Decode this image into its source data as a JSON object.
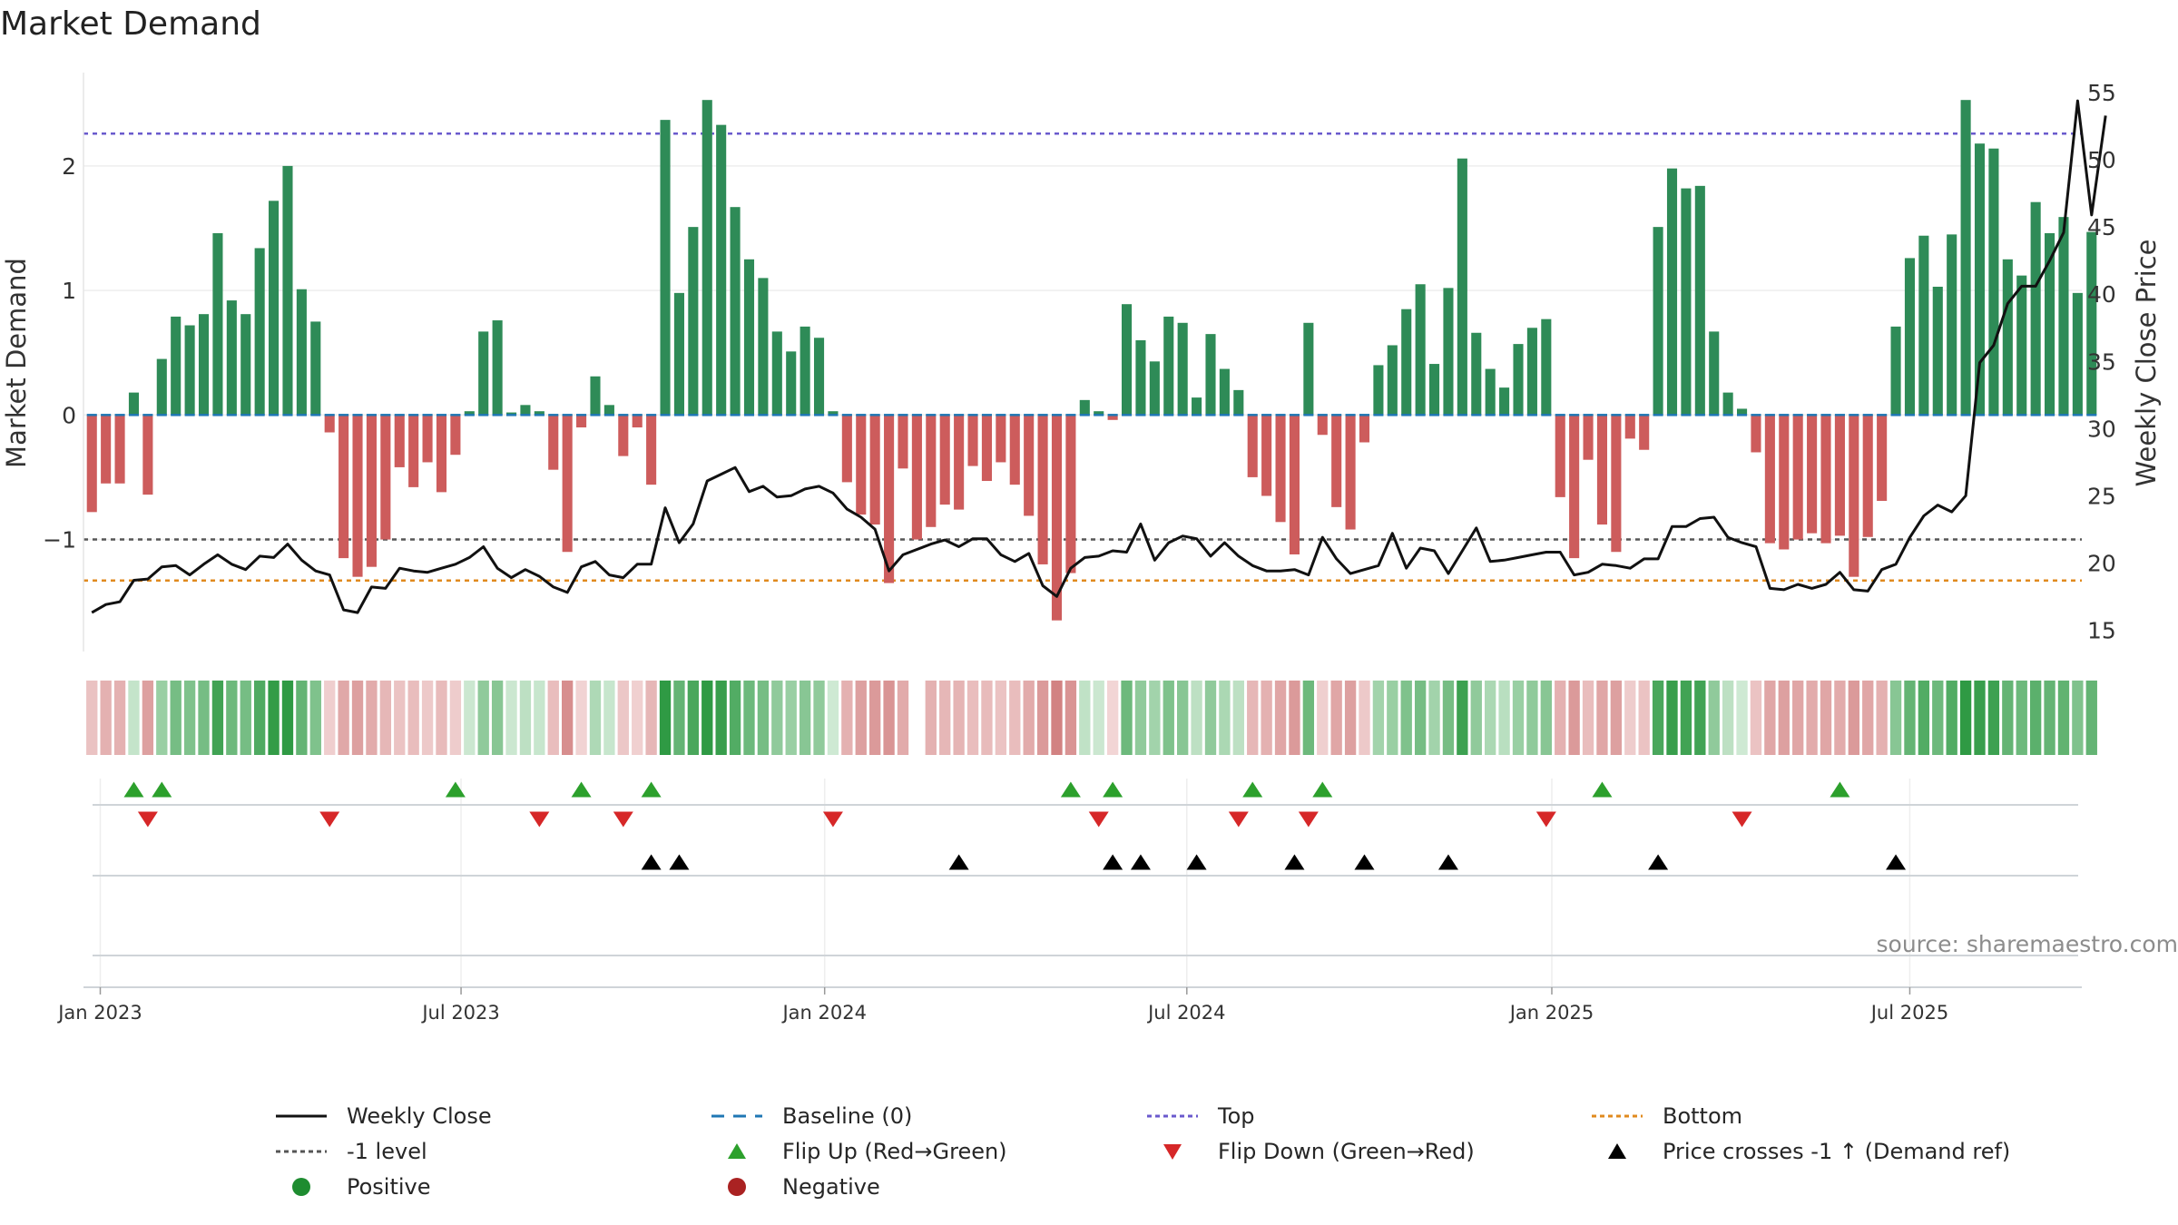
{
  "chart_data": {
    "type": "bar",
    "title": "Market Demand",
    "ylabel_left": "Market Demand",
    "ylabel_right": "Weekly Close Price",
    "source": "source: sharemaestro.com",
    "left_axis": {
      "ylim": [
        -1.9,
        2.75
      ],
      "ticks": [
        -1,
        0,
        1,
        2
      ],
      "tick_labels": [
        "−1",
        "0",
        "1",
        "2"
      ]
    },
    "right_axis": {
      "ylim": [
        13.4,
        56.5
      ],
      "ticks": [
        15,
        20,
        25,
        30,
        35,
        40,
        45,
        50,
        55
      ],
      "tick_labels": [
        "15",
        "20",
        "25",
        "30",
        "35",
        "40",
        "45",
        "50",
        "55"
      ]
    },
    "x_range_weeks": [
      -0.6,
      142.3
    ],
    "x_ticks": [
      {
        "week": 0.6,
        "label": "Jan 2023"
      },
      {
        "week": 26.4,
        "label": "Jul 2023"
      },
      {
        "week": 52.4,
        "label": "Jan 2024"
      },
      {
        "week": 78.3,
        "label": "Jul 2024"
      },
      {
        "week": 104.4,
        "label": "Jan 2025"
      },
      {
        "week": 130.0,
        "label": "Jul 2025"
      }
    ],
    "reference_lines": {
      "top": 2.26,
      "minus_one": -1.0,
      "bottom": -1.33,
      "baseline": 0
    },
    "market_demand": [
      -0.78,
      -0.55,
      -0.55,
      0.18,
      -0.64,
      0.45,
      0.79,
      0.72,
      0.81,
      1.46,
      0.92,
      0.81,
      1.34,
      1.72,
      2.0,
      1.01,
      0.75,
      -0.14,
      -1.15,
      -1.3,
      -1.22,
      -1.0,
      -0.42,
      -0.58,
      -0.38,
      -0.62,
      -0.32,
      0.03,
      0.67,
      0.76,
      0.02,
      0.08,
      0.03,
      -0.44,
      -1.1,
      -0.1,
      0.31,
      0.08,
      -0.33,
      -0.1,
      -0.56,
      2.37,
      0.98,
      1.51,
      2.53,
      2.33,
      1.67,
      1.25,
      1.1,
      0.67,
      0.51,
      0.71,
      0.62,
      0.03,
      -0.54,
      -0.8,
      -0.88,
      -1.35,
      -0.43,
      -1.0,
      -0.9,
      -0.72,
      -0.76,
      -0.41,
      -0.53,
      -0.38,
      -0.56,
      -0.81,
      -1.2,
      -1.65,
      -1.27,
      0.12,
      0.03,
      -0.04,
      0.89,
      0.6,
      0.43,
      0.79,
      0.74,
      0.14,
      0.65,
      0.37,
      0.2,
      -0.5,
      -0.65,
      -0.86,
      -1.12,
      0.74,
      -0.16,
      -0.74,
      -0.92,
      -0.22,
      0.4,
      0.56,
      0.85,
      1.05,
      0.41,
      1.02,
      2.06,
      0.66,
      0.37,
      0.22,
      0.57,
      0.7,
      0.77,
      -0.66,
      -1.15,
      -0.36,
      -0.88,
      -1.1,
      -0.19,
      -0.28,
      1.51,
      1.98,
      1.82,
      1.84,
      0.67,
      0.18,
      0.05,
      -0.3,
      -1.03,
      -1.08,
      -1.0,
      -0.95,
      -1.03,
      -0.97,
      -1.3,
      -0.98,
      -0.69,
      0.71,
      1.26,
      1.44,
      1.03,
      1.45,
      2.53,
      2.18,
      2.14,
      1.25,
      1.12,
      1.71,
      1.46,
      1.59,
      0.98,
      1.47
    ],
    "weekly_close": [
      16.3,
      16.9,
      17.1,
      18.7,
      18.8,
      19.7,
      19.8,
      19.1,
      19.9,
      20.6,
      19.9,
      19.5,
      20.5,
      20.4,
      21.4,
      20.2,
      19.4,
      19.1,
      16.5,
      16.3,
      18.2,
      18.1,
      19.6,
      19.4,
      19.3,
      19.6,
      19.9,
      20.4,
      21.2,
      19.6,
      18.9,
      19.5,
      19.0,
      18.2,
      17.8,
      19.7,
      20.1,
      19.1,
      18.9,
      19.9,
      19.9,
      24.1,
      21.5,
      22.9,
      26.1,
      26.6,
      27.1,
      25.3,
      25.7,
      24.9,
      25.0,
      25.5,
      25.7,
      25.2,
      24.0,
      23.4,
      22.5,
      19.4,
      20.6,
      21.0,
      21.4,
      21.7,
      21.2,
      21.8,
      21.8,
      20.6,
      20.1,
      20.7,
      18.3,
      17.5,
      19.6,
      20.4,
      20.5,
      20.9,
      20.8,
      22.9,
      20.2,
      21.5,
      22.0,
      21.8,
      20.5,
      21.5,
      20.5,
      19.8,
      19.4,
      19.4,
      19.5,
      19.1,
      21.9,
      20.3,
      19.2,
      19.5,
      19.8,
      22.2,
      19.6,
      21.1,
      20.9,
      19.2,
      20.9,
      22.6,
      20.1,
      20.2,
      20.4,
      20.6,
      20.8,
      20.8,
      19.1,
      19.3,
      19.9,
      19.8,
      19.6,
      20.3,
      20.3,
      22.7,
      22.7,
      23.3,
      23.4,
      21.9,
      21.5,
      21.2,
      18.1,
      18.0,
      18.4,
      18.1,
      18.4,
      19.3,
      18.0,
      17.9,
      19.5,
      19.9,
      21.9,
      23.5,
      24.3,
      23.8,
      25.0,
      34.9,
      36.2,
      39.3,
      40.6,
      40.6,
      42.5,
      44.6,
      54.4,
      45.9,
      53.3
    ],
    "strip_values": [
      -0.26,
      -0.4,
      -0.4,
      0.16,
      -0.55,
      0.4,
      0.6,
      0.55,
      0.6,
      0.9,
      0.65,
      0.6,
      0.82,
      0.98,
      1.0,
      0.7,
      0.55,
      -0.16,
      -0.48,
      -0.55,
      -0.45,
      -0.35,
      -0.25,
      -0.3,
      -0.2,
      -0.32,
      -0.18,
      0.12,
      0.45,
      0.5,
      0.12,
      0.2,
      0.14,
      -0.3,
      -0.7,
      -0.12,
      0.28,
      0.14,
      -0.22,
      -0.14,
      -0.35,
      1.0,
      0.7,
      0.85,
      1.0,
      0.95,
      0.8,
      0.65,
      0.6,
      0.45,
      0.4,
      0.5,
      0.45,
      0.1,
      -0.4,
      -0.55,
      -0.6,
      -0.65,
      -0.45,
      null,
      -0.4,
      -0.35,
      -0.38,
      -0.3,
      -0.32,
      -0.25,
      -0.3,
      -0.45,
      -0.6,
      -0.8,
      -0.65,
      0.18,
      0.12,
      -0.1,
      0.65,
      0.45,
      0.35,
      0.55,
      0.5,
      0.2,
      0.45,
      0.3,
      0.2,
      -0.35,
      -0.4,
      -0.5,
      -0.6,
      0.65,
      -0.15,
      -0.5,
      -0.55,
      -0.2,
      0.35,
      0.4,
      0.55,
      0.6,
      0.35,
      0.6,
      0.92,
      0.45,
      0.3,
      0.22,
      0.4,
      0.45,
      0.5,
      -0.4,
      -0.6,
      -0.3,
      -0.5,
      -0.55,
      -0.18,
      -0.25,
      0.85,
      0.95,
      0.9,
      0.9,
      0.45,
      0.2,
      0.1,
      -0.25,
      -0.5,
      -0.55,
      -0.5,
      -0.45,
      -0.5,
      -0.45,
      -0.6,
      -0.5,
      -0.4,
      0.5,
      0.7,
      0.8,
      0.65,
      0.8,
      1.0,
      0.95,
      0.92,
      0.7,
      0.65,
      0.75,
      0.7,
      0.72,
      0.55,
      0.7
    ],
    "flip_up_weeks": [
      3,
      5,
      26,
      35,
      40,
      70,
      73,
      83,
      88,
      108,
      125
    ],
    "flip_down_weeks": [
      4,
      17,
      32,
      38,
      53,
      72,
      82,
      87,
      104,
      118
    ],
    "price_cross_weeks": [
      40,
      42,
      62,
      73,
      75,
      79,
      86,
      91,
      97,
      112,
      129
    ],
    "legend": [
      {
        "label": "Weekly Close",
        "symbol": "solid-line",
        "color": "#111111"
      },
      {
        "label": "Baseline (0)",
        "symbol": "dashed-line",
        "color": "#1f77b4"
      },
      {
        "label": "Top",
        "symbol": "dotted-line",
        "color": "#6a5acd"
      },
      {
        "label": "Bottom",
        "symbol": "dotted-line",
        "color": "#e08a1e"
      },
      {
        "label": "-1 level",
        "symbol": "dotted-line",
        "color": "#555555"
      },
      {
        "label": "Flip Up (Red→Green)",
        "symbol": "triangle-up",
        "color": "#2ca02c"
      },
      {
        "label": "Flip Down (Green→Red)",
        "symbol": "triangle-down",
        "color": "#d62728"
      },
      {
        "label": "Price crosses -1 ↑ (Demand ref)",
        "symbol": "triangle-up",
        "color": "#000000"
      },
      {
        "label": "Positive",
        "symbol": "circle",
        "color": "#1e8c30"
      },
      {
        "label": "Negative",
        "symbol": "circle",
        "color": "#aa2222"
      }
    ],
    "colors": {
      "positive_bar": "#2e8b57",
      "negative_bar": "#cd5c5c",
      "price_line": "#111111",
      "top_line": "#6a5acd",
      "bottom_line": "#e08a1e",
      "minus_one_line": "#555555",
      "baseline": "#1f77b4",
      "flip_up": "#2ca02c",
      "flip_down": "#d62728",
      "price_cross": "#000000"
    }
  }
}
